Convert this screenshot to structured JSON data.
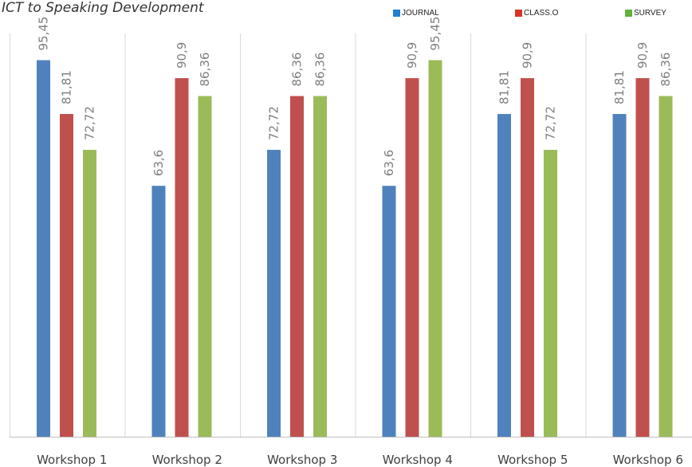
{
  "chart_data": {
    "type": "bar",
    "title": "ICT to Speaking Development",
    "categories": [
      "Workshop 1",
      "Workshop 2",
      "Workshop 3",
      "Workshop 4",
      "Workshop 5",
      "Workshop 6"
    ],
    "series": [
      {
        "name": "JOURNAL",
        "color": "#4f81bd",
        "legend_color": "#1f7fd0",
        "values": [
          95.45,
          63.6,
          72.72,
          63.6,
          81.81,
          81.81
        ],
        "labels": [
          "95,45",
          "63,6",
          "72,72",
          "63,6",
          "81,81",
          "81,81"
        ]
      },
      {
        "name": "CLASS.O",
        "color": "#c0504d",
        "legend_color": "#d9342b",
        "values": [
          81.81,
          90.9,
          86.36,
          90.9,
          90.9,
          90.9
        ],
        "labels": [
          "81,81",
          "90,9",
          "86,36",
          "90,9",
          "90,9",
          "90,9"
        ]
      },
      {
        "name": "SURVEY",
        "color": "#9bbb59",
        "legend_color": "#5fb13a",
        "values": [
          72.72,
          86.36,
          86.36,
          95.45,
          72.72,
          86.36
        ],
        "labels": [
          "72,72",
          "86,36",
          "86,36",
          "95,45",
          "72,72",
          "86,36"
        ]
      }
    ],
    "xlabel": "",
    "ylabel": "",
    "ylim": [
      0,
      100
    ],
    "grid": "vertical separators between categories",
    "legend_position": "top-right"
  }
}
